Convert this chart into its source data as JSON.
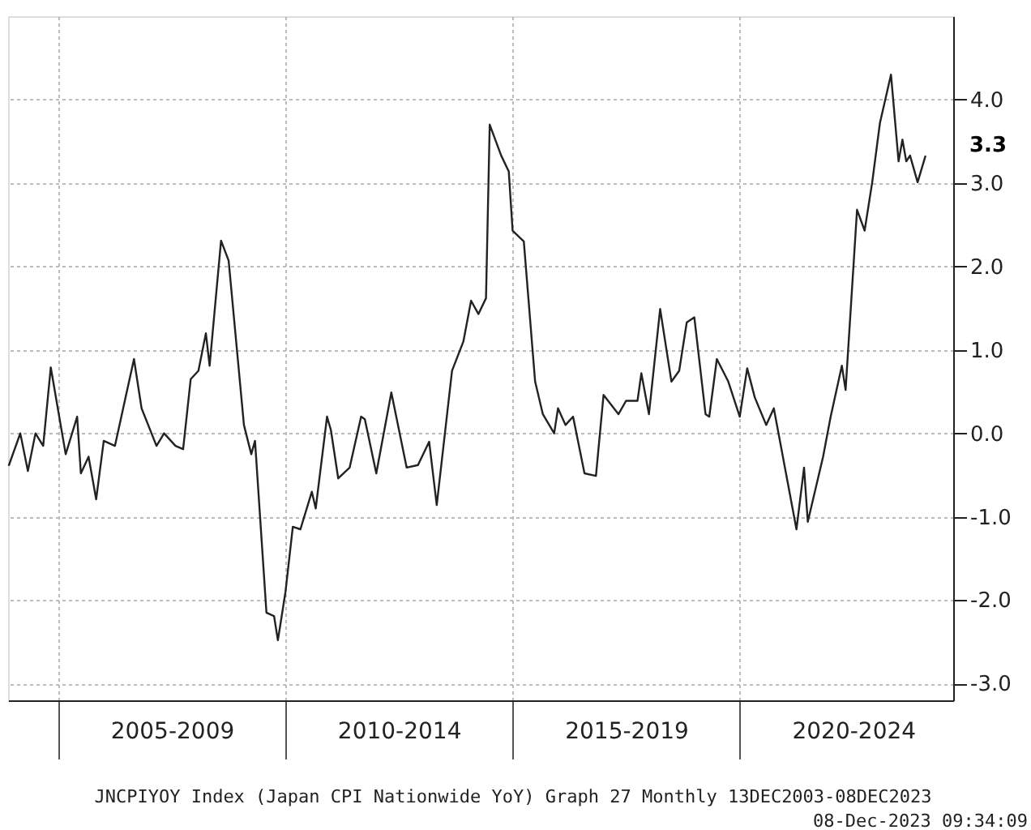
{
  "chart_data": {
    "type": "line",
    "x": [
      "2003-12",
      "2004-03",
      "2004-05",
      "2004-07",
      "2004-09",
      "2004-11",
      "2005-03",
      "2005-06",
      "2005-07",
      "2005-09",
      "2005-11",
      "2006-01",
      "2006-04",
      "2006-07",
      "2006-09",
      "2006-11",
      "2007-03",
      "2007-05",
      "2007-08",
      "2007-10",
      "2007-12",
      "2008-02",
      "2008-04",
      "2008-05",
      "2008-08",
      "2008-10",
      "2009-02",
      "2009-04",
      "2009-05",
      "2009-08",
      "2009-10",
      "2009-11",
      "2010-01",
      "2010-03",
      "2010-05",
      "2010-08",
      "2010-09",
      "2010-12",
      "2011-01",
      "2011-03",
      "2011-06",
      "2011-09",
      "2011-10",
      "2012-01",
      "2012-05",
      "2012-09",
      "2012-12",
      "2013-03",
      "2013-05",
      "2013-09",
      "2013-12",
      "2014-02",
      "2014-04",
      "2014-06",
      "2014-07",
      "2014-10",
      "2014-12",
      "2015-01",
      "2015-04",
      "2015-07",
      "2015-09",
      "2015-12",
      "2016-01",
      "2016-03",
      "2016-05",
      "2016-08",
      "2016-11",
      "2017-01",
      "2017-05",
      "2017-07",
      "2017-10",
      "2017-11",
      "2018-01",
      "2018-04",
      "2018-07",
      "2018-09",
      "2018-11",
      "2019-01",
      "2019-04",
      "2019-05",
      "2019-07",
      "2019-10",
      "2020-01",
      "2020-03",
      "2020-05",
      "2020-08",
      "2020-10",
      "2021-04",
      "2021-06",
      "2021-07",
      "2021-11",
      "2022-01",
      "2022-04",
      "2022-05",
      "2022-08",
      "2022-10",
      "2022-12",
      "2023-02",
      "2023-05",
      "2023-07",
      "2023-08",
      "2023-09",
      "2023-10",
      "2023-12",
      "2024-02"
    ],
    "series": [
      {
        "color": "#222222",
        "values": [
          -0.38,
          0.0,
          -0.45,
          0.0,
          -0.15,
          0.79,
          -0.25,
          0.2,
          -0.48,
          -0.28,
          -0.79,
          -0.09,
          -0.15,
          0.47,
          0.89,
          0.3,
          -0.15,
          0.0,
          -0.15,
          -0.19,
          0.65,
          0.75,
          1.2,
          0.81,
          2.31,
          2.07,
          0.1,
          -0.25,
          -0.09,
          -2.15,
          -2.19,
          -2.48,
          -1.9,
          -1.12,
          -1.15,
          -0.7,
          -0.9,
          0.2,
          0.04,
          -0.54,
          -0.41,
          0.2,
          0.17,
          -0.48,
          0.49,
          -0.41,
          -0.38,
          -0.1,
          -0.86,
          0.75,
          1.1,
          1.59,
          1.43,
          1.62,
          3.7,
          3.33,
          3.14,
          2.43,
          2.3,
          0.62,
          0.23,
          0.0,
          0.3,
          0.1,
          0.2,
          -0.48,
          -0.51,
          0.46,
          0.23,
          0.39,
          0.39,
          0.72,
          0.23,
          1.49,
          0.62,
          0.75,
          1.33,
          1.39,
          0.23,
          0.2,
          0.89,
          0.62,
          0.2,
          0.78,
          0.43,
          0.1,
          0.3,
          -1.15,
          -0.41,
          -1.06,
          -0.28,
          0.2,
          0.81,
          0.52,
          2.68,
          2.43,
          3.01,
          3.72,
          4.3,
          3.26,
          3.52,
          3.26,
          3.33,
          3.01,
          3.32
        ]
      }
    ],
    "xlim": [
      "2003-11-24",
      "2024-09-12"
    ],
    "xticks": [
      {
        "value": "2005-01-01",
        "label": null
      },
      {
        "value": "2007-07-02",
        "label": "2005-2009"
      },
      {
        "value": "2010-01-01",
        "label": null
      },
      {
        "value": "2012-07-01",
        "label": "2010-2014"
      },
      {
        "value": "2015-01-01",
        "label": null
      },
      {
        "value": "2017-07-02",
        "label": "2015-2019"
      },
      {
        "value": "2020-01-01",
        "label": null
      },
      {
        "value": "2022-07-02",
        "label": "2020-2024"
      }
    ],
    "ylim": [
      -3.2,
      5.0
    ],
    "yticks": [
      {
        "value": -3,
        "label": "-3.0"
      },
      {
        "value": -2,
        "label": "-2.0"
      },
      {
        "value": -1,
        "label": "-1.0"
      },
      {
        "value": 0,
        "label": "0.0"
      },
      {
        "value": 1,
        "label": "1.0"
      },
      {
        "value": 2,
        "label": "2.0"
      },
      {
        "value": 3,
        "label": "3.0"
      },
      {
        "value": 4,
        "label": "4.0"
      }
    ],
    "grid": true,
    "line_style": "solid",
    "annotations": [
      "3.3",
      "JNCPIYOY Index (Japan CPI Nationwide YoY) Graph 27  Monthly 13DEC2003-08DEC2023",
      "08-Dec-2023 09:34:09"
    ]
  }
}
